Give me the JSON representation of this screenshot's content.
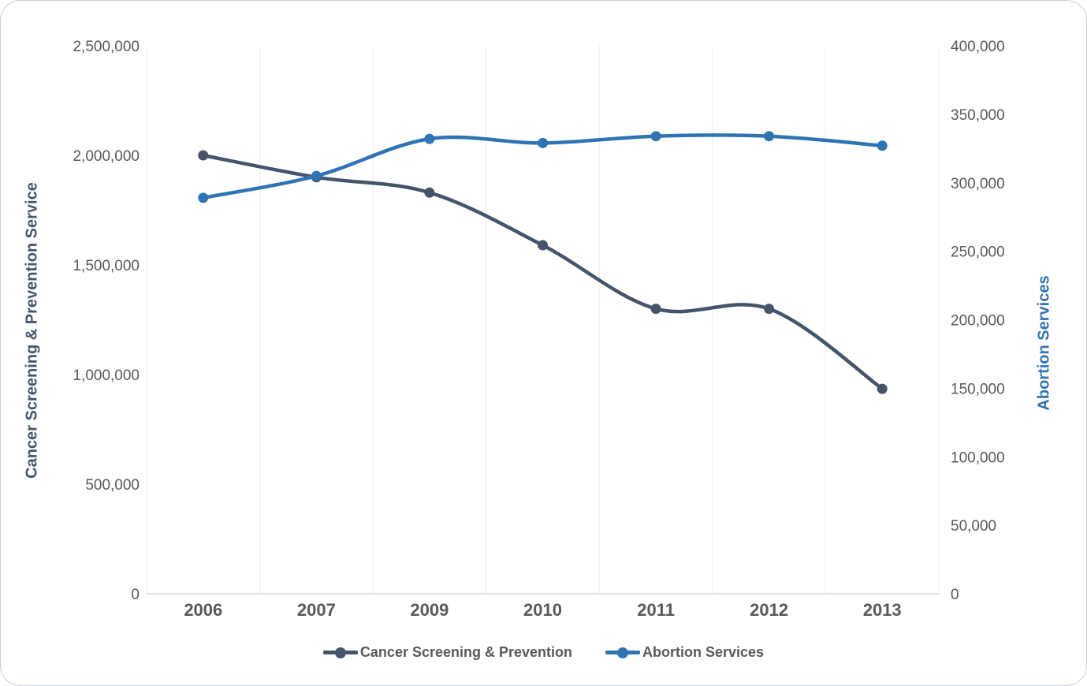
{
  "chart_data": {
    "type": "line",
    "smooth": true,
    "grid": "vertical-only",
    "title": "",
    "categories": [
      "2006",
      "2007",
      "2009",
      "2010",
      "2011",
      "2012",
      "2013"
    ],
    "series": [
      {
        "name": "Cancer Screening & Prevention",
        "axis": "left",
        "color": "#44546A",
        "values": [
          2000000,
          1900000,
          1830000,
          1590000,
          1300000,
          1300000,
          935000
        ]
      },
      {
        "name": "Abortion Services",
        "axis": "right",
        "color": "#2E74B5",
        "values": [
          289000,
          305000,
          332000,
          329000,
          334000,
          334000,
          327000
        ]
      }
    ],
    "left_axis": {
      "title": "Cancer Screening & Prevention Service",
      "color": "#44546A",
      "min": 0,
      "max": 2500000,
      "step": 500000,
      "tick_labels": [
        "0",
        "500,000",
        "1,000,000",
        "1,500,000",
        "2,000,000",
        "2,500,000"
      ]
    },
    "right_axis": {
      "title": "Abortion Services",
      "color": "#2E74B5",
      "min": 0,
      "max": 400000,
      "step": 50000,
      "tick_labels": [
        "0",
        "50,000",
        "100,000",
        "150,000",
        "200,000",
        "250,000",
        "300,000",
        "350,000",
        "400,000"
      ]
    },
    "legend": [
      {
        "label": "Cancer Screening & Prevention",
        "color": "#44546A"
      },
      {
        "label": "Abortion Services",
        "color": "#2E74B5"
      }
    ],
    "style": {
      "gridline_color": "#ECECEC",
      "axis_line_color": "#D9D9D9",
      "tick_text_color": "#595959"
    }
  }
}
